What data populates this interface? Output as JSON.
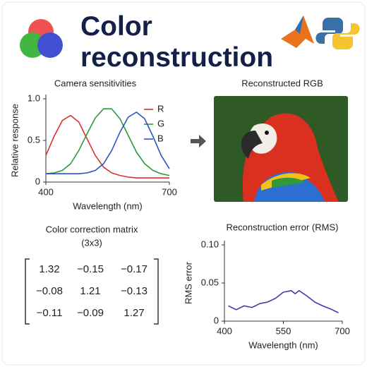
{
  "title": "Color reconstruction",
  "image": {
    "title": "Reconstructed RGB"
  },
  "matrix": {
    "title": [
      "Color correction matrix",
      "(3x3)"
    ],
    "rows": [
      [
        "1.32",
        "−0.15",
        "−0.17"
      ],
      [
        "−0.08",
        "1.21",
        "−0.13"
      ],
      [
        "−0.11",
        "−0.09",
        "1.27"
      ]
    ]
  },
  "chart_data": [
    {
      "type": "line",
      "title": "Camera sensitivities",
      "xlabel": "Wavelength (nm)",
      "ylabel": "Relative response",
      "x": [
        400,
        420,
        440,
        460,
        480,
        500,
        520,
        540,
        560,
        580,
        600,
        620,
        640,
        660,
        680,
        700
      ],
      "xlim": [
        400,
        700
      ],
      "xticks": [
        400,
        700
      ],
      "ylim": [
        0,
        1
      ],
      "yticks": [
        0,
        0.5,
        {
          "value": 1,
          "label": "1.0"
        }
      ],
      "legend": "upper right",
      "series": [
        {
          "name": "R",
          "color": "#d8322c",
          "values": [
            0.32,
            0.55,
            0.74,
            0.8,
            0.72,
            0.52,
            0.32,
            0.18,
            0.11,
            0.08,
            0.06,
            0.05,
            0.05,
            0.05,
            0.05,
            0.05
          ]
        },
        {
          "name": "G",
          "color": "#2e9a3a",
          "values": [
            0.1,
            0.11,
            0.14,
            0.22,
            0.38,
            0.58,
            0.77,
            0.88,
            0.88,
            0.76,
            0.56,
            0.36,
            0.22,
            0.14,
            0.1,
            0.08
          ]
        },
        {
          "name": "B",
          "color": "#2a55c8",
          "values": [
            0.1,
            0.1,
            0.1,
            0.1,
            0.1,
            0.11,
            0.14,
            0.22,
            0.38,
            0.6,
            0.78,
            0.84,
            0.76,
            0.55,
            0.32,
            0.16
          ]
        }
      ]
    },
    {
      "type": "line",
      "title": "Reconstruction error (RMS)",
      "xlabel": "Wavelength (nm)",
      "ylabel": "RMS error",
      "x": [
        410,
        430,
        450,
        470,
        490,
        510,
        530,
        550,
        570,
        580,
        590,
        610,
        630,
        650,
        670,
        690
      ],
      "xlim": [
        400,
        700
      ],
      "xticks": [
        400,
        550,
        700
      ],
      "ylim": [
        0,
        0.1
      ],
      "yticks": [
        0,
        0.05,
        {
          "value": 0.1,
          "label": "0.10"
        }
      ],
      "series": [
        {
          "color": "#3b3bb0",
          "values": [
            0.02,
            0.015,
            0.02,
            0.018,
            0.023,
            0.025,
            0.03,
            0.038,
            0.04,
            0.036,
            0.04,
            0.033,
            0.025,
            0.02,
            0.016,
            0.011
          ]
        }
      ]
    }
  ]
}
